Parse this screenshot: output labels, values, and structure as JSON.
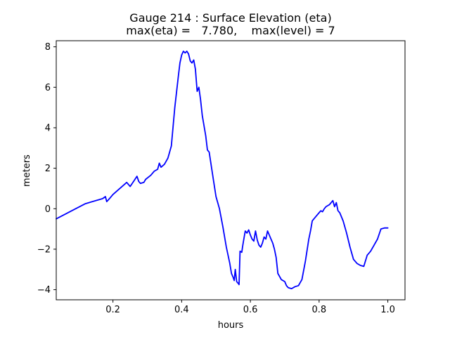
{
  "chart_data": {
    "type": "line",
    "title_line1": "Gauge 214 : Surface Elevation (eta)",
    "title_line2": "max(eta) =   7.780,    max(level) = 7",
    "xlabel": "hours",
    "ylabel": "meters",
    "xlim": [
      0.035,
      1.05
    ],
    "ylim": [
      -4.5,
      8.3
    ],
    "xticks": [
      0.2,
      0.4,
      0.6,
      0.8,
      1.0
    ],
    "xtick_labels": [
      "0.2",
      "0.4",
      "0.6",
      "0.8",
      "1.0"
    ],
    "yticks": [
      -4,
      -2,
      0,
      2,
      4,
      6,
      8
    ],
    "ytick_labels": [
      "−4",
      "−2",
      "0",
      "2",
      "4",
      "6",
      "8"
    ],
    "grid": false,
    "series": [
      {
        "name": "eta",
        "color": "#0000ff",
        "x": [
          0.035,
          0.08,
          0.12,
          0.17,
          0.178,
          0.182,
          0.19,
          0.2,
          0.22,
          0.24,
          0.25,
          0.26,
          0.27,
          0.275,
          0.28,
          0.29,
          0.295,
          0.31,
          0.32,
          0.33,
          0.335,
          0.34,
          0.35,
          0.36,
          0.37,
          0.38,
          0.39,
          0.395,
          0.4,
          0.405,
          0.41,
          0.415,
          0.42,
          0.425,
          0.43,
          0.435,
          0.44,
          0.445,
          0.45,
          0.455,
          0.46,
          0.47,
          0.475,
          0.48,
          0.49,
          0.5,
          0.51,
          0.52,
          0.53,
          0.54,
          0.545,
          0.55,
          0.553,
          0.556,
          0.56,
          0.565,
          0.567,
          0.57,
          0.575,
          0.577,
          0.58,
          0.585,
          0.59,
          0.595,
          0.6,
          0.605,
          0.61,
          0.615,
          0.62,
          0.625,
          0.63,
          0.635,
          0.64,
          0.645,
          0.65,
          0.655,
          0.66,
          0.665,
          0.67,
          0.675,
          0.68,
          0.69,
          0.7,
          0.705,
          0.71,
          0.72,
          0.73,
          0.74,
          0.75,
          0.76,
          0.77,
          0.775,
          0.78,
          0.79,
          0.8,
          0.805,
          0.81,
          0.815,
          0.82,
          0.83,
          0.84,
          0.845,
          0.85,
          0.855,
          0.86,
          0.87,
          0.88,
          0.89,
          0.9,
          0.91,
          0.92,
          0.93,
          0.94,
          0.95,
          0.96,
          0.97,
          0.98,
          0.99,
          1.0
        ],
        "y": [
          -0.5,
          -0.1,
          0.25,
          0.5,
          0.6,
          0.35,
          0.5,
          0.7,
          1.0,
          1.3,
          1.1,
          1.35,
          1.6,
          1.35,
          1.25,
          1.3,
          1.45,
          1.65,
          1.85,
          1.95,
          2.25,
          2.05,
          2.2,
          2.5,
          3.1,
          5.0,
          6.5,
          7.2,
          7.6,
          7.78,
          7.7,
          7.78,
          7.65,
          7.3,
          7.2,
          7.35,
          6.9,
          5.8,
          6.0,
          5.4,
          4.6,
          3.6,
          2.9,
          2.8,
          1.7,
          0.6,
          0.0,
          -0.9,
          -1.9,
          -2.7,
          -3.2,
          -3.4,
          -3.55,
          -3.0,
          -3.6,
          -3.7,
          -3.75,
          -2.1,
          -2.15,
          -1.9,
          -1.6,
          -1.1,
          -1.2,
          -1.05,
          -1.3,
          -1.5,
          -1.6,
          -1.1,
          -1.55,
          -1.8,
          -1.9,
          -1.7,
          -1.4,
          -1.5,
          -1.1,
          -1.3,
          -1.5,
          -1.7,
          -2.0,
          -2.4,
          -3.2,
          -3.5,
          -3.6,
          -3.8,
          -3.9,
          -3.95,
          -3.85,
          -3.8,
          -3.5,
          -2.6,
          -1.5,
          -1.1,
          -0.6,
          -0.4,
          -0.2,
          -0.1,
          -0.15,
          0.0,
          0.1,
          0.2,
          0.4,
          0.1,
          0.3,
          -0.1,
          -0.2,
          -0.6,
          -1.2,
          -1.9,
          -2.5,
          -2.7,
          -2.8,
          -2.85,
          -2.3,
          -2.1,
          -1.8,
          -1.5,
          -1.0,
          -0.95,
          -0.95
        ]
      }
    ],
    "max_eta": 7.78,
    "max_level": 7
  }
}
